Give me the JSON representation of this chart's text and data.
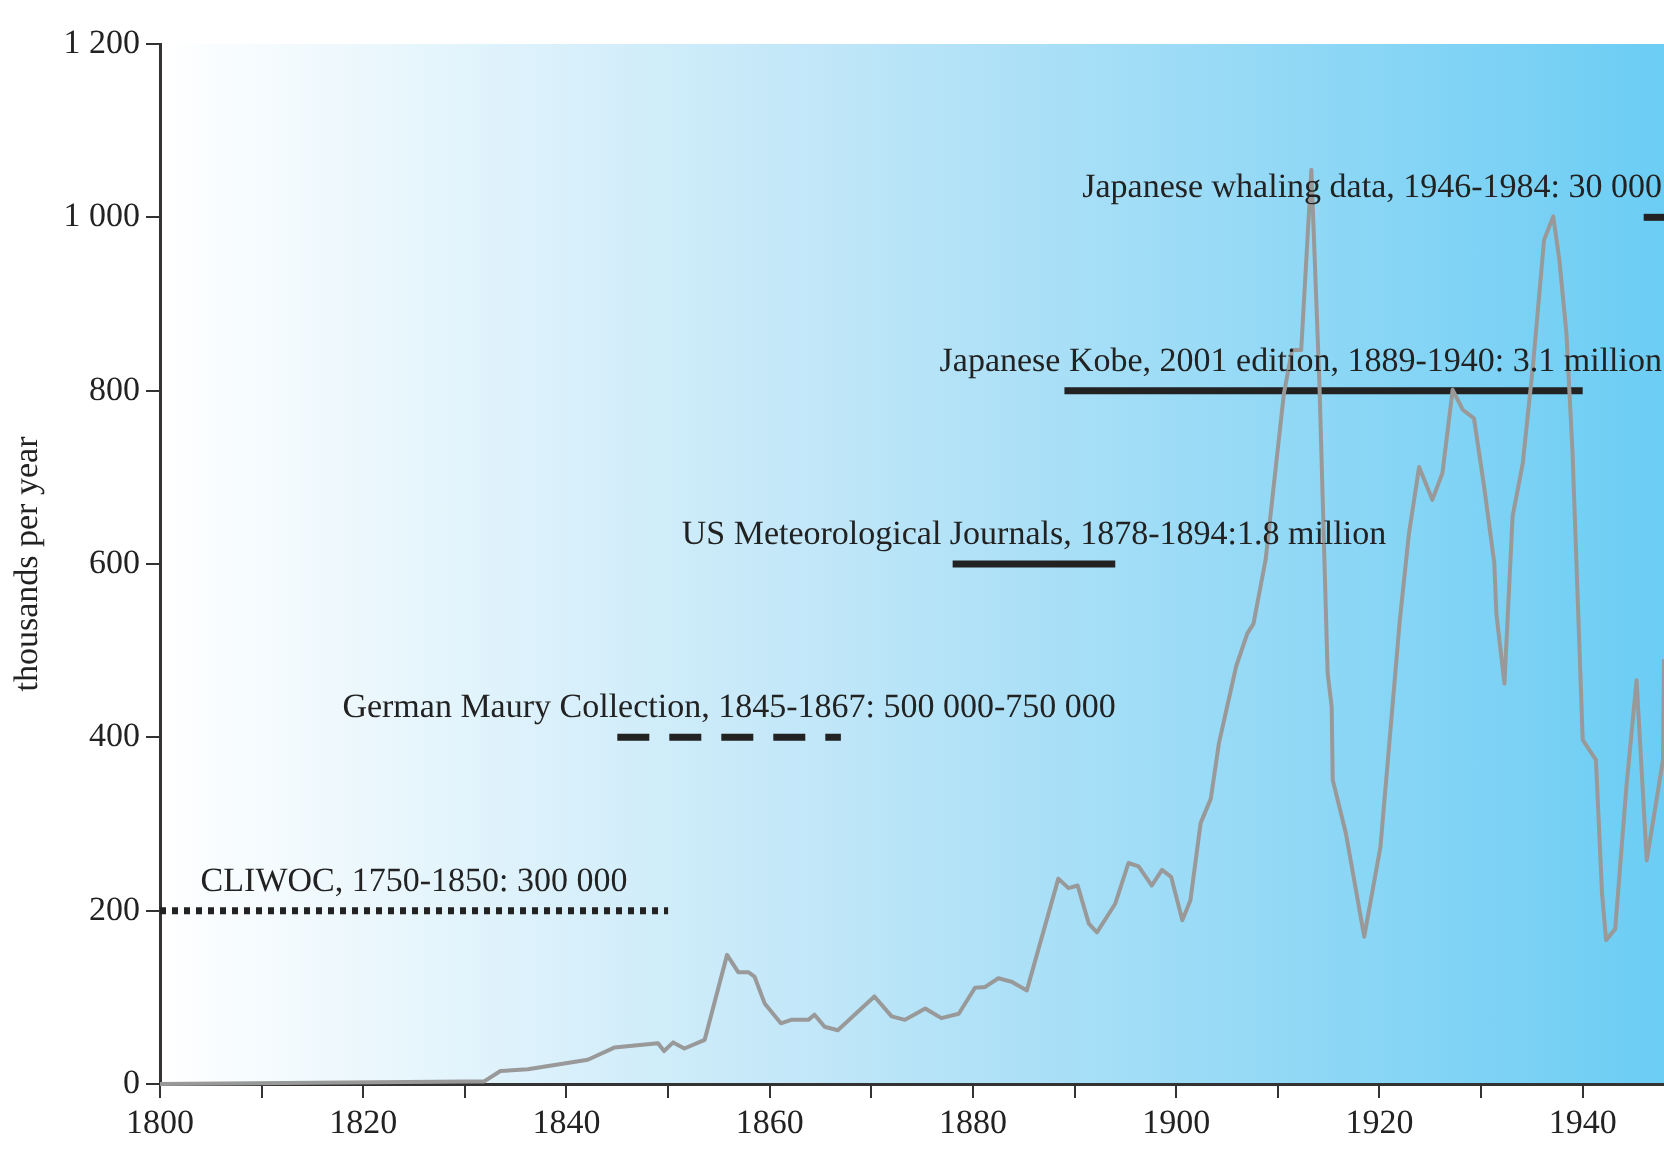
{
  "chart_data": {
    "type": "line",
    "ylabel": "thousands per year",
    "xlim": [
      1800,
      1948
    ],
    "ylim": [
      0,
      1200
    ],
    "xticks": [
      1800,
      {
        "value": 1810,
        "label": null
      },
      1820,
      {
        "value": 1830,
        "label": null
      },
      1840,
      {
        "value": 1850,
        "label": null
      },
      1860,
      {
        "value": 1870,
        "label": null
      },
      1880,
      {
        "value": 1890,
        "label": null
      },
      1900,
      {
        "value": 1910,
        "label": null
      },
      1920,
      {
        "value": 1930,
        "label": null
      },
      1940
    ],
    "yticks": [
      0,
      200,
      400,
      600,
      800,
      {
        "value": 1000,
        "label": "1 000"
      },
      {
        "value": 1200,
        "label": "1 200"
      }
    ],
    "grid": false,
    "legend": false,
    "marker": "none",
    "series": [
      {
        "color": "#999999",
        "line_style": "solid",
        "x": [
          1800,
          1830.2,
          1831.9,
          1833.5,
          1836.2,
          1842.1,
          1844.7,
          1849,
          1849.6,
          1850.5,
          1851.6,
          1853.6,
          1855.8,
          1856.9,
          1857.9,
          1858.5,
          1859.5,
          1861.1,
          1862.1,
          1863.8,
          1864.4,
          1865.4,
          1866.7,
          1870.3,
          1872,
          1873.3,
          1875.3,
          1876.9,
          1878.6,
          1880.2,
          1881.2,
          1882.5,
          1883.8,
          1885.3,
          1888.4,
          1889.4,
          1890.3,
          1891.4,
          1892.2,
          1894,
          1895.3,
          1896.3,
          1897.6,
          1898.6,
          1899.5,
          1900.6,
          1901.4,
          1902.4,
          1903.4,
          1904.2,
          1905.9,
          1907,
          1907.6,
          1908.8,
          1909.8,
          1910.6,
          1911.4,
          1912.3,
          1913.3,
          1914.1,
          1914.9,
          1915.3,
          1915.4,
          1916.7,
          1918.5,
          1920.1,
          1921,
          1922,
          1922.9,
          1923.9,
          1925.2,
          1926.2,
          1927.2,
          1928.2,
          1929.3,
          1930.3,
          1931.3,
          1931.5,
          1932.3,
          1933.1,
          1934.1,
          1935.1,
          1936.2,
          1937.1,
          1937.7,
          1938.4,
          1939,
          1939.7,
          1940,
          1941.3,
          1941.9,
          1942.3,
          1943.2,
          1944.3,
          1945.3,
          1946.3,
          1947.9,
          1948
        ],
        "values": [
          0,
          3,
          3,
          15,
          17,
          28,
          42,
          47,
          38,
          48,
          41,
          51,
          149,
          129,
          129,
          124,
          93,
          70,
          74,
          74,
          80,
          66,
          62,
          101,
          78,
          74,
          87,
          76,
          81,
          111,
          112,
          122,
          118,
          108,
          237,
          226,
          229,
          185,
          175,
          208,
          255,
          251,
          229,
          247,
          239,
          189,
          212,
          301,
          329,
          393,
          482,
          520,
          531,
          605,
          712,
          797,
          847,
          847,
          1055,
          805,
          474,
          435,
          351,
          289,
          170,
          274,
          397,
          535,
          635,
          712,
          674,
          705,
          801,
          778,
          768,
          689,
          601,
          543,
          462,
          655,
          716,
          828,
          974,
          1001,
          951,
          866,
          728,
          497,
          397,
          374,
          220,
          166,
          179,
          343,
          466,
          258,
          374,
          490
        ]
      },
      {
        "name": "CLIWOC, 1750-1850: 300 000",
        "color": "#222222",
        "line_style": "dotted",
        "x": [
          1800,
          1850
        ],
        "values": [
          200,
          200
        ]
      },
      {
        "name": "German Maury Collection, 1845-1867: 500 000-750 000",
        "color": "#222222",
        "line_style": "dashed",
        "x": [
          1845,
          1867
        ],
        "values": [
          400,
          400
        ]
      },
      {
        "name": "US Meteorological Journals, 1878-1894:1.8 million",
        "color": "#222222",
        "line_style": "solid",
        "x": [
          1878,
          1894
        ],
        "values": [
          600,
          600
        ]
      },
      {
        "name": "Japanese Kobe, 2001 edition, 1889-1940: 3.1 million",
        "color": "#222222",
        "line_style": "solid",
        "x": [
          1889,
          1940
        ],
        "values": [
          800,
          800
        ]
      },
      {
        "name": "Japanese whaling data, 1946-1984: 30 000",
        "color": "#222222",
        "line_style": "solid",
        "x": [
          1946,
          1948
        ],
        "values": [
          1000,
          1000
        ]
      }
    ]
  }
}
